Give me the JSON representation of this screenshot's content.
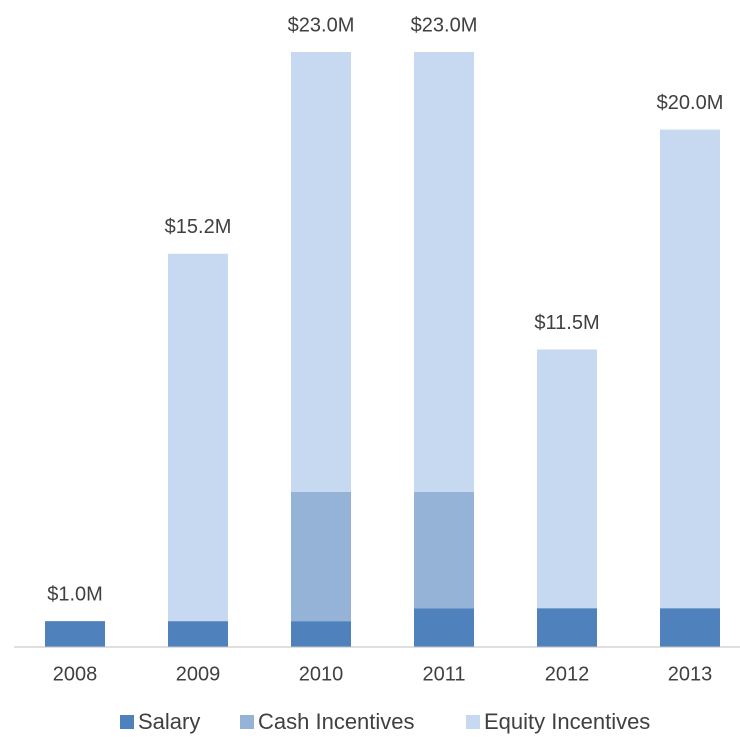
{
  "chart_data": {
    "type": "stacked-bar",
    "categories": [
      "2008",
      "2009",
      "2010",
      "2011",
      "2012",
      "2013"
    ],
    "series": [
      {
        "name": "Salary",
        "color": "#4f81bd",
        "values": [
          1.0,
          1.0,
          1.0,
          1.5,
          1.5,
          1.5
        ]
      },
      {
        "name": "Cash Incentives",
        "color": "#95b3d7",
        "values": [
          0,
          0,
          5.0,
          4.5,
          0,
          0
        ]
      },
      {
        "name": "Equity Incentives",
        "color": "#c6d9f1",
        "values": [
          0,
          14.2,
          17.0,
          17.0,
          10.0,
          18.5
        ]
      }
    ],
    "totals": {
      "values": [
        1.0,
        15.2,
        23.0,
        23.0,
        11.5,
        20.0
      ],
      "value_labels": [
        "$1.0M",
        "$15.2M",
        "$23.0M",
        "$23.0M",
        "$11.5M",
        "$20.0M"
      ]
    },
    "legend": "bottom"
  }
}
